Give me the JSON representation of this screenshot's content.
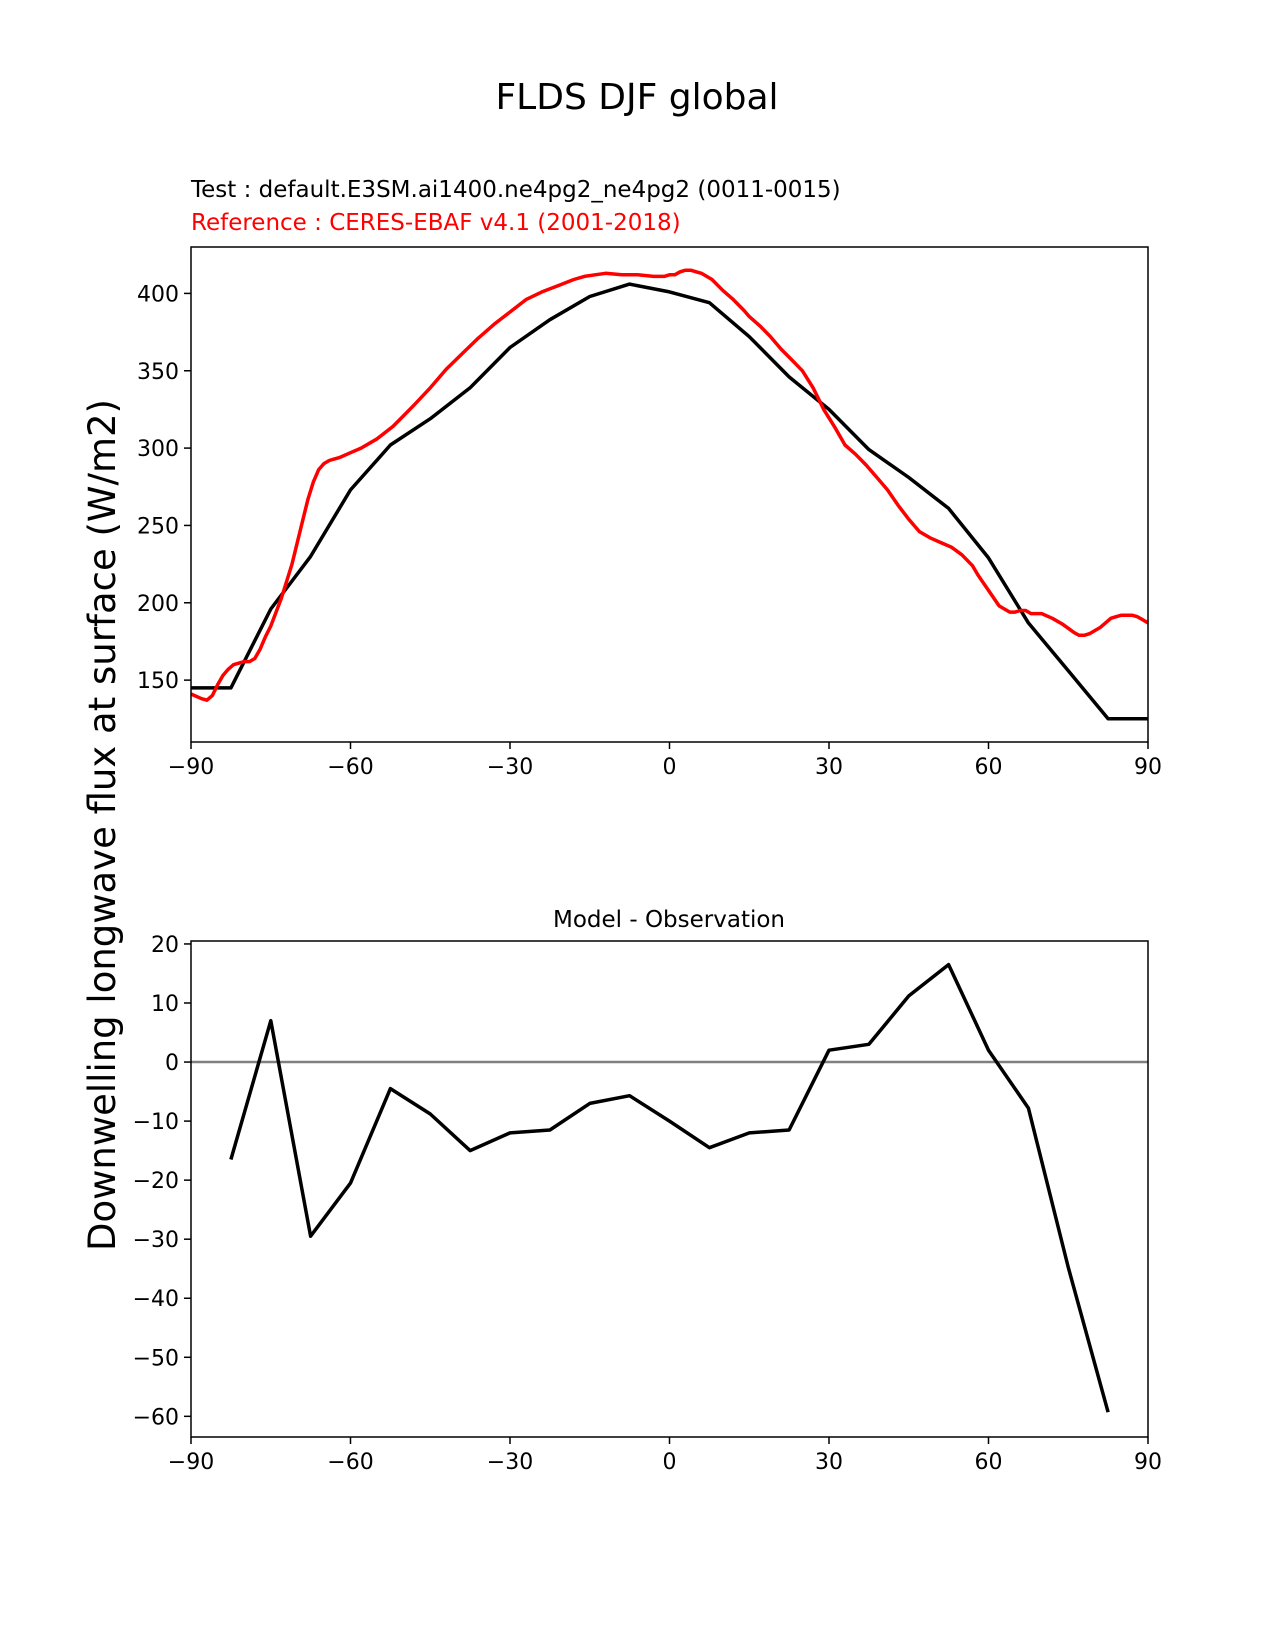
{
  "figure": {
    "suptitle": "FLDS DJF global",
    "ylabel": "Downwelling longwave flux at surface (W/m2)"
  },
  "chart_data": [
    {
      "type": "line",
      "test_label": "Test : default.E3SM.ai1400.ne4pg2_ne4pg2 (0011-0015)",
      "ref_label": "Reference : CERES-EBAF v4.1 (2001-2018)",
      "xlim": [
        -90,
        90
      ],
      "ylim": [
        110,
        430
      ],
      "xticks": [
        -90,
        -60,
        -30,
        0,
        30,
        60,
        90
      ],
      "xtick_labels": [
        "−90",
        "−60",
        "−30",
        "0",
        "30",
        "60",
        "90"
      ],
      "yticks": [
        150,
        200,
        250,
        300,
        350,
        400
      ],
      "ytick_labels": [
        "150",
        "200",
        "250",
        "300",
        "350",
        "400"
      ],
      "colors": {
        "test": "#000000",
        "reference": "#ff0000"
      },
      "series": [
        {
          "name": "Test : default.E3SM.ai1400.ne4pg2_ne4pg2 (0011-0015)",
          "x": [
            -90,
            -82.5,
            -75,
            -67.5,
            -60,
            -52.5,
            -45,
            -37.5,
            -30,
            -22.5,
            -15,
            -7.5,
            0,
            7.5,
            15,
            22.5,
            30,
            37.5,
            45,
            52.5,
            60,
            67.5,
            75,
            82.5,
            90
          ],
          "y": [
            145,
            145,
            196,
            230,
            273,
            302,
            319,
            339,
            365,
            383,
            398,
            406,
            401,
            394,
            372,
            346,
            325,
            299,
            281,
            261,
            229,
            187,
            156,
            125,
            125
          ]
        },
        {
          "name": "Reference : CERES-EBAF v4.1 (2001-2018)",
          "x": [
            -90,
            -88,
            -87,
            -86,
            -85,
            -84,
            -83,
            -82,
            -80,
            -79,
            -78,
            -77,
            -76,
            -75,
            -73,
            -71,
            -69,
            -68,
            -67,
            -66,
            -65,
            -64,
            -63,
            -62,
            -60,
            -58,
            -55,
            -52,
            -50,
            -48,
            -45,
            -42,
            -39,
            -36,
            -33,
            -30,
            -27,
            -24,
            -21,
            -18,
            -16,
            -14,
            -12,
            -9,
            -6,
            -3,
            -1,
            0,
            1,
            2,
            3,
            4,
            5,
            6,
            7,
            8,
            10,
            12,
            14,
            15,
            17,
            19,
            21,
            23,
            25,
            27,
            29,
            31,
            33,
            35,
            37,
            39,
            41,
            43,
            45,
            47,
            49,
            51,
            53,
            55,
            57,
            58,
            59,
            60,
            61,
            62,
            63,
            64,
            65,
            66,
            67,
            68,
            70,
            72,
            74,
            76,
            77,
            78,
            79,
            80,
            81,
            82,
            83,
            84,
            85,
            86,
            87,
            88,
            89,
            90
          ],
          "y": [
            141,
            138,
            137,
            140,
            147,
            153,
            157,
            160,
            162,
            162,
            164,
            170,
            178,
            185,
            203,
            225,
            253,
            267,
            278,
            286,
            290,
            292,
            293,
            294,
            297,
            300,
            306,
            314,
            321,
            328,
            339,
            351,
            361,
            371,
            380,
            388,
            396,
            401,
            405,
            409,
            411,
            412,
            413,
            412,
            412,
            411,
            411,
            412,
            412,
            414,
            415,
            415,
            414,
            413,
            411,
            409,
            402,
            396,
            389,
            385,
            379,
            372,
            364,
            357,
            350,
            339,
            325,
            314,
            302,
            296,
            289,
            281,
            273,
            263,
            254,
            246,
            242,
            239,
            236,
            231,
            224,
            218,
            213,
            208,
            203,
            198,
            196,
            194,
            194,
            195,
            195,
            193,
            193,
            190,
            186,
            181,
            179,
            179,
            180,
            182,
            184,
            187,
            190,
            191,
            192,
            192,
            192,
            191,
            189,
            187
          ]
        }
      ]
    },
    {
      "type": "line",
      "title": "Model - Observation",
      "xlim": [
        -90,
        90
      ],
      "ylim": [
        -63.5,
        20.5
      ],
      "xticks": [
        -90,
        -60,
        -30,
        0,
        30,
        60,
        90
      ],
      "xtick_labels": [
        "−90",
        "−60",
        "−30",
        "0",
        "30",
        "60",
        "90"
      ],
      "yticks": [
        -60,
        -50,
        -40,
        -30,
        -20,
        -10,
        0,
        10,
        20
      ],
      "ytick_labels": [
        "−60",
        "−50",
        "−40",
        "−30",
        "−20",
        "−10",
        "0",
        "10",
        "20"
      ],
      "zero_line_color": "#808080",
      "series": [
        {
          "x": [
            -82.5,
            -75,
            -67.5,
            -60,
            -52.5,
            -45,
            -37.5,
            -30,
            -22.5,
            -15,
            -7.5,
            0,
            7.5,
            15,
            22.5,
            30,
            37.5,
            45,
            52.5,
            60,
            67.5,
            75,
            82.5
          ],
          "y": [
            -16.5,
            7,
            -29.5,
            -20.5,
            -4.5,
            -8.8,
            -15,
            -12,
            -11.5,
            -7,
            -5.7,
            -10,
            -14.5,
            -12,
            -11.5,
            2,
            3,
            11.2,
            16.5,
            2,
            -7.8,
            -34.8,
            -59.3
          ]
        }
      ]
    }
  ]
}
